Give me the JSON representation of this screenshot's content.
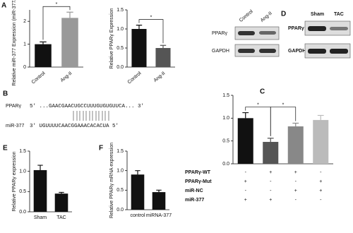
{
  "panel_letters": [
    "A",
    "B",
    "C",
    "D",
    "E",
    "F"
  ],
  "chart_data": [
    {
      "type": "bar",
      "ylabel": "Relative miR-377 Expression (miR-377/U6)",
      "categories": [
        "Control",
        "Ang-II"
      ],
      "values": [
        1.0,
        2.15
      ],
      "errors": [
        0.1,
        0.25
      ],
      "colors": [
        "#111111",
        "#999999"
      ],
      "ylim": [
        0,
        2.5
      ],
      "yticks": [
        0,
        1,
        2
      ],
      "annotations": [
        "*"
      ]
    },
    {
      "type": "bar",
      "ylabel": "Relative PPARγ Expression",
      "categories": [
        "Control",
        "Ang-II"
      ],
      "values": [
        1.0,
        0.5
      ],
      "errors": [
        0.1,
        0.07
      ],
      "colors": [
        "#111111",
        "#555555"
      ],
      "ylim": [
        0,
        1.5
      ],
      "yticks": [
        {
          "value": 0,
          "label": "0.0"
        },
        0.5,
        {
          "value": 1,
          "label": "1.0"
        },
        1.5
      ],
      "annotations": [
        "*"
      ]
    },
    {
      "type": "bar",
      "categories": [
        null,
        null,
        null,
        null
      ],
      "values": [
        1.0,
        0.48,
        0.82,
        0.96
      ],
      "errors": [
        0.12,
        0.08,
        0.07,
        0.1
      ],
      "colors": [
        "#111111",
        "#555555",
        "#888888",
        "#bbbbbb"
      ],
      "ylim": [
        0,
        1.5
      ],
      "yticks": [
        {
          "value": 0,
          "label": "0.0"
        },
        0.5,
        {
          "value": 1,
          "label": "1.0"
        },
        1.5
      ],
      "annotations": [
        "*",
        "*"
      ],
      "conditions": [
        {
          "name": "PPARγ-WT",
          "signs": [
            "-",
            "+",
            "+",
            "-"
          ]
        },
        {
          "name": "PPARγ-Mut",
          "signs": [
            "+",
            "-",
            "-",
            "+"
          ]
        },
        {
          "name": "miR-NC",
          "signs": [
            "-",
            "-",
            "+",
            "+"
          ]
        },
        {
          "name": "miR-377",
          "signs": [
            "+",
            "+",
            "-",
            "-"
          ]
        }
      ]
    },
    {
      "type": "bar",
      "ylabel": "Relative PPARγ expression",
      "categories": [
        "Sham",
        "TAC"
      ],
      "values": [
        1.03,
        0.45
      ],
      "errors": [
        0.12,
        0.03
      ],
      "colors": [
        "#111111",
        "#111111"
      ],
      "ylim": [
        0,
        1.5
      ],
      "yticks": [
        {
          "value": 0,
          "label": "0.0"
        },
        0.5,
        {
          "value": 1,
          "label": "1.0"
        },
        1.5
      ]
    },
    {
      "type": "bar",
      "ylabel": "Relative PPARγ mRNA expression",
      "categories": [
        "control",
        "miRNA-377"
      ],
      "values": [
        0.9,
        0.45
      ],
      "errors": [
        0.1,
        0.05
      ],
      "colors": [
        "#111111",
        "#111111"
      ],
      "ylim": [
        0,
        1.5
      ],
      "yticks": [
        {
          "value": 0,
          "label": "0.0"
        },
        0.5,
        {
          "value": 1,
          "label": "1.0"
        },
        1.5
      ]
    }
  ],
  "blots": [
    {
      "lanes": [
        "Control",
        "Ang-II"
      ],
      "rows": [
        "PPARγ",
        "GAPDH"
      ]
    },
    {
      "lanes": [
        "Sham",
        "TAC"
      ],
      "rows": [
        "PPARγ",
        "GAPDH"
      ]
    }
  ],
  "sequence": {
    "target": "PPARγ",
    "target_seq": "5' ...GAACGAACUGCCUUUGUGUGUUCA... 3'",
    "mirna": "miR-377",
    "mirna_seq": "3'  UGUUUUCAACGGAAACACACUA    5'"
  }
}
